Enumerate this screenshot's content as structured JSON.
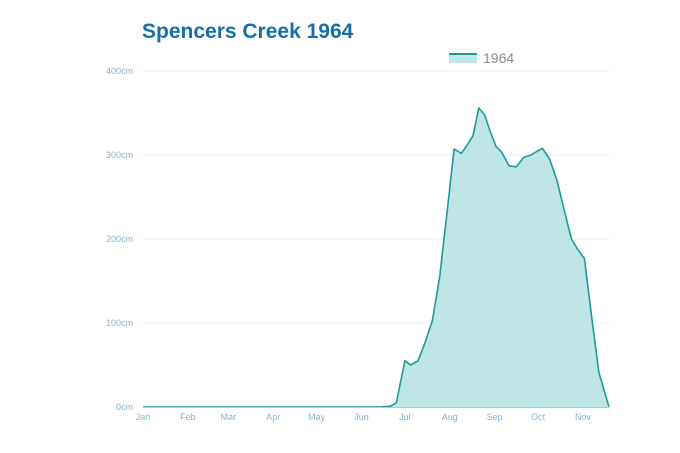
{
  "chart_data": {
    "type": "area",
    "title": "Spencers Creek 1964",
    "series": [
      {
        "name": "1964",
        "points": [
          [
            0,
            0
          ],
          [
            150,
            0
          ],
          [
            164,
            0
          ],
          [
            171,
            1
          ],
          [
            175,
            5
          ],
          [
            181,
            55
          ],
          [
            185,
            50
          ],
          [
            190,
            55
          ],
          [
            195,
            77
          ],
          [
            200,
            103
          ],
          [
            205,
            155
          ],
          [
            210,
            230
          ],
          [
            215,
            307
          ],
          [
            220,
            302
          ],
          [
            224,
            312
          ],
          [
            228,
            323
          ],
          [
            232,
            356
          ],
          [
            236,
            348
          ],
          [
            240,
            328
          ],
          [
            244,
            310
          ],
          [
            248,
            303
          ],
          [
            253,
            287
          ],
          [
            258,
            286
          ],
          [
            263,
            297
          ],
          [
            268,
            300
          ],
          [
            272,
            304
          ],
          [
            276,
            308
          ],
          [
            281,
            295
          ],
          [
            286,
            270
          ],
          [
            291,
            235
          ],
          [
            296,
            200
          ],
          [
            301,
            186
          ],
          [
            305,
            177
          ],
          [
            310,
            108
          ],
          [
            315,
            41
          ],
          [
            322,
            0
          ]
        ]
      }
    ],
    "x_ticks": [
      "Jan",
      "Feb",
      "Mar",
      "Apr",
      "May",
      "Jun",
      "Jul",
      "Aug",
      "Sep",
      "Oct",
      "Nov"
    ],
    "x_tick_days": [
      0,
      31,
      59,
      90,
      120,
      151,
      181,
      212,
      243,
      273,
      304
    ],
    "y_ticks": [
      "0cm",
      "100cm",
      "200cm",
      "300cm",
      "400cm"
    ],
    "y_tick_values": [
      0,
      100,
      200,
      300,
      400
    ],
    "xlim": [
      0,
      322
    ],
    "ylim": [
      0,
      400
    ],
    "grid": true,
    "legend_position": "top-right",
    "colors": {
      "line": "#1b9c9c",
      "fill": "#bfe5e6",
      "title": "#1670a6",
      "tick": "#7fb6cf",
      "grid": "#eeeeee"
    }
  }
}
